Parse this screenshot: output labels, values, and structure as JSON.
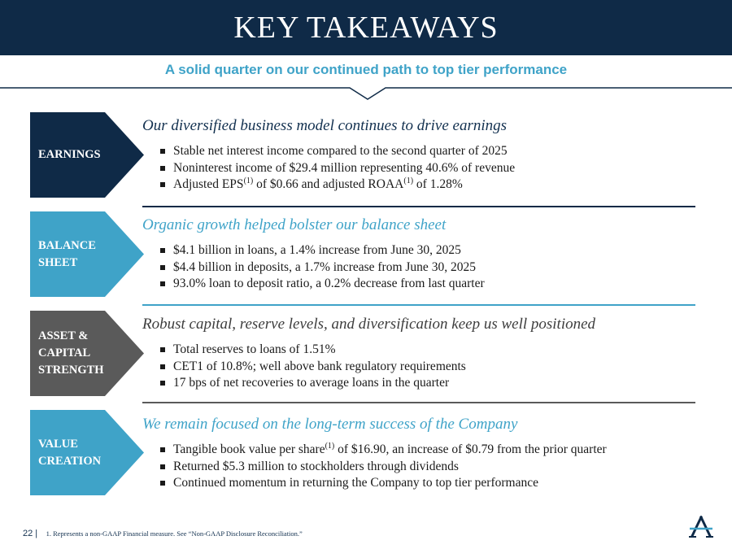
{
  "header": {
    "title": "KEY TAKEAWAYS",
    "subtitle": "A solid quarter on our continued path to top tier performance"
  },
  "colors": {
    "navy": "#0f2a47",
    "teal": "#3fa3c8",
    "gray": "#5a5a5a"
  },
  "sections": [
    {
      "badge": "EARNINGS",
      "heading": "Our diversified business model continues to drive earnings",
      "bullets": [
        {
          "text": "Stable net interest income compared to the second quarter of 2025"
        },
        {
          "text": "Noninterest income of $29.4 million representing 40.6% of revenue"
        },
        {
          "pre": "Adjusted EPS",
          "sup": "(1)",
          "mid": " of $0.66 and adjusted ROAA",
          "sup2": "(1)",
          "post": " of 1.28%"
        }
      ]
    },
    {
      "badge": "BALANCE\nSHEET",
      "heading": "Organic growth helped bolster our balance sheet",
      "bullets": [
        {
          "text": "$4.1 billion in loans, a 1.4% increase from June 30, 2025"
        },
        {
          "text": "$4.4 billion in deposits, a 1.7% increase from June 30, 2025"
        },
        {
          "text": "93.0% loan to deposit ratio, a 0.2% decrease from last quarter"
        }
      ]
    },
    {
      "badge": "ASSET &\nCAPITAL\nSTRENGTH",
      "heading": "Robust capital, reserve levels, and diversification keep us well positioned",
      "bullets": [
        {
          "text": "Total reserves to loans of 1.51%"
        },
        {
          "text": "CET1 of 10.8%; well above bank regulatory requirements"
        },
        {
          "text": "17 bps of net recoveries to average loans in the quarter"
        }
      ]
    },
    {
      "badge": "VALUE\nCREATION",
      "heading": "We remain focused on the long-term success of the Company",
      "bullets": [
        {
          "pre": "Tangible book value per share",
          "sup": "(1)",
          "post": " of $16.90, an increase of $0.79 from the prior quarter"
        },
        {
          "text": "Returned $5.3 million to stockholders through dividends"
        },
        {
          "text": "Continued momentum in returning the Company to top tier performance"
        }
      ]
    }
  ],
  "footer": {
    "page_number": "22 |",
    "footnote": "1. Represents a non-GAAP Financial measure. See “Non-GAAP Disclosure Reconciliation.”"
  },
  "logo": {
    "icon": "company-logo-a-icon"
  }
}
